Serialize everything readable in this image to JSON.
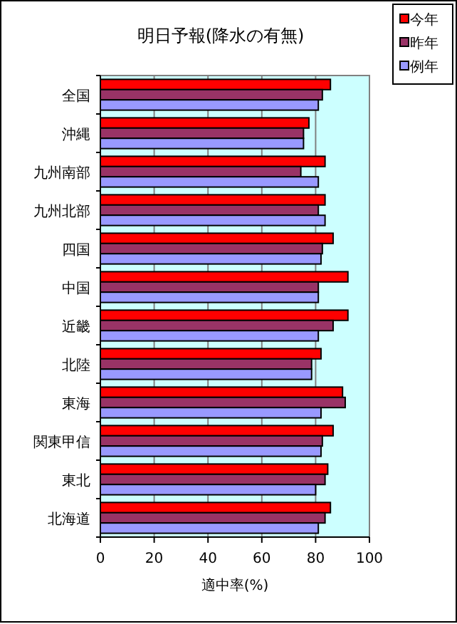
{
  "chart_data": {
    "type": "bar",
    "orientation": "horizontal",
    "title": "明日予報(降水の有無)",
    "xlabel": "適中率(%)",
    "categories": [
      "全国",
      "沖縄",
      "九州南部",
      "九州北部",
      "四国",
      "中国",
      "近畿",
      "北陸",
      "東海",
      "関東甲信",
      "東北",
      "北海道"
    ],
    "series": [
      {
        "name": "今年",
        "color": "#ff0000",
        "values": [
          85.5,
          77.5,
          83.5,
          83.5,
          86.5,
          92,
          92,
          82,
          90,
          86.5,
          84.5,
          85.5
        ]
      },
      {
        "name": "昨年",
        "color": "#993366",
        "values": [
          82.5,
          75.5,
          74.5,
          81,
          82.5,
          81,
          86.5,
          78.5,
          91,
          82.5,
          83.5,
          83.5
        ]
      },
      {
        "name": "例年",
        "color": "#9999ff",
        "values": [
          81,
          75.5,
          81,
          83.5,
          82,
          81,
          81,
          78.5,
          82,
          82,
          80,
          81
        ]
      }
    ],
    "xlim": [
      0,
      100
    ],
    "xticks": [
      0,
      20,
      40,
      60,
      80,
      100
    ],
    "grid": "x",
    "legend": "top right"
  }
}
